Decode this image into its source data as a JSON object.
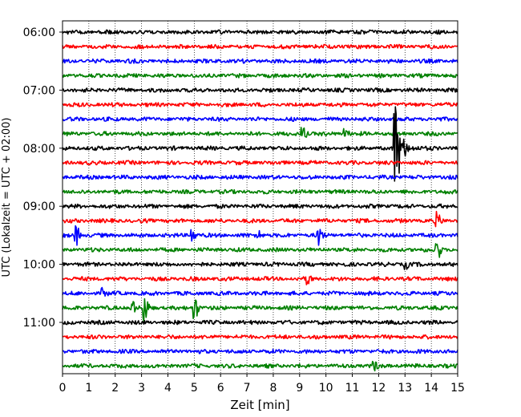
{
  "chart_data": {
    "type": "line",
    "title": "",
    "xlabel": "Zeit  [min]",
    "ylabel": "UTC (Lokalzeit = UTC + 02:00)",
    "xlim": [
      0,
      15
    ],
    "x_ticks": [
      0,
      1,
      2,
      3,
      4,
      5,
      6,
      7,
      8,
      9,
      10,
      11,
      12,
      13,
      14,
      15
    ],
    "y_tick_labels": [
      "06:00",
      "07:00",
      "08:00",
      "09:00",
      "10:00",
      "11:00"
    ],
    "trace_start_times": [
      "06:00",
      "06:15",
      "06:30",
      "06:45",
      "07:00",
      "07:15",
      "07:30",
      "07:45",
      "08:00",
      "08:15",
      "08:30",
      "08:45",
      "09:00",
      "09:15",
      "09:30",
      "09:45",
      "10:00",
      "10:15",
      "10:30",
      "10:45",
      "11:00",
      "11:15",
      "11:30",
      "11:45"
    ],
    "trace_colors_cycle": [
      "#000000",
      "#ff0000",
      "#0000ff",
      "#008000"
    ],
    "grid": "x-dotted",
    "events": [
      {
        "trace": "07:45",
        "time_min": 9.1,
        "amplitude": 0.55
      },
      {
        "trace": "07:45",
        "time_min": 10.7,
        "amplitude": 0.35
      },
      {
        "trace": "08:00",
        "time_min": 12.6,
        "amplitude": 4.5
      },
      {
        "trace": "09:15",
        "time_min": 14.2,
        "amplitude": 0.5
      },
      {
        "trace": "09:30",
        "time_min": 0.5,
        "amplitude": 0.7
      },
      {
        "trace": "09:30",
        "time_min": 4.9,
        "amplitude": 0.55
      },
      {
        "trace": "09:30",
        "time_min": 7.4,
        "amplitude": 0.4
      },
      {
        "trace": "09:30",
        "time_min": 9.7,
        "amplitude": 0.75
      },
      {
        "trace": "09:45",
        "time_min": 14.2,
        "amplitude": 0.9
      },
      {
        "trace": "10:00",
        "time_min": 13.0,
        "amplitude": 0.3
      },
      {
        "trace": "10:15",
        "time_min": 9.3,
        "amplitude": 0.35
      },
      {
        "trace": "10:30",
        "time_min": 1.5,
        "amplitude": 0.3
      },
      {
        "trace": "10:45",
        "time_min": 2.6,
        "amplitude": 0.6
      },
      {
        "trace": "10:45",
        "time_min": 3.1,
        "amplitude": 1.0
      },
      {
        "trace": "10:45",
        "time_min": 5.0,
        "amplitude": 0.9
      },
      {
        "trace": "11:45",
        "time_min": 11.8,
        "amplitude": 0.3
      }
    ]
  }
}
